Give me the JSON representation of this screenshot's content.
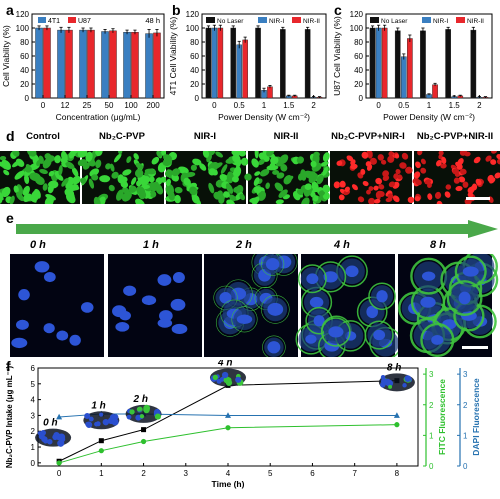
{
  "panels": {
    "a": {
      "letter": "a"
    },
    "b": {
      "letter": "b"
    },
    "c": {
      "letter": "c"
    },
    "d": {
      "letter": "d"
    },
    "e": {
      "letter": "e"
    },
    "f": {
      "letter": "f"
    }
  },
  "colors": {
    "series_4t1": "#3a7fc1",
    "series_u87": "#e8272c",
    "no_laser": "#111111",
    "nir1": "#3a7fc1",
    "nir2": "#e8272c",
    "live_green": "#3fd13f",
    "dead_red": "#e22424",
    "arrow_green": "#4aa84a",
    "dapi_blue": "#2672b0",
    "fitc_green": "#2ec02e"
  },
  "panel_d": {
    "labels": [
      "Control",
      "Nb₂C-PVP",
      "NIR-I",
      "NIR-II",
      "Nb₂C-PVP+NIR-I",
      "Nb₂C-PVP+NIR-II"
    ]
  },
  "panel_e": {
    "times": [
      "0 h",
      "1 h",
      "2 h",
      "4 h",
      "8 h"
    ]
  },
  "chart_data": [
    {
      "id": "a",
      "type": "bar",
      "annotation": "48 h",
      "xlabel": "Concentration (μg/mL)",
      "ylabel": "Cell Viability (%)",
      "categories": [
        "0",
        "12",
        "25",
        "50",
        "100",
        "200"
      ],
      "ylim": [
        0,
        120
      ],
      "yticks": [
        0,
        20,
        40,
        60,
        80,
        100,
        120
      ],
      "legend": "top-left",
      "series": [
        {
          "name": "4T1",
          "values": [
            100,
            97,
            97,
            95,
            94,
            92
          ],
          "errors": [
            3,
            4,
            3,
            3,
            3,
            6
          ]
        },
        {
          "name": "U87",
          "values": [
            100,
            97,
            97,
            96,
            94,
            93
          ],
          "errors": [
            3,
            4,
            3,
            3,
            3,
            5
          ]
        }
      ]
    },
    {
      "id": "b",
      "type": "bar",
      "xlabel": "Power Density (W cm⁻²)",
      "ylabel": "4T1 Cell Viability (%)",
      "categories": [
        "0",
        "0.5",
        "1",
        "1.5",
        "2"
      ],
      "ylim": [
        0,
        120
      ],
      "yticks": [
        0,
        20,
        40,
        60,
        80,
        100,
        120
      ],
      "legend": "top",
      "series": [
        {
          "name": "No Laser",
          "values": [
            100,
            100,
            100,
            98,
            98
          ],
          "errors": [
            3,
            3,
            3,
            3,
            3
          ]
        },
        {
          "name": "NIR-I",
          "values": [
            100,
            76,
            11,
            3,
            1
          ],
          "errors": [
            4,
            5,
            3,
            1,
            1
          ]
        },
        {
          "name": "NIR-II",
          "values": [
            100,
            83,
            16,
            3,
            1
          ],
          "errors": [
            4,
            4,
            2,
            1,
            1
          ]
        }
      ]
    },
    {
      "id": "c",
      "type": "bar",
      "xlabel": "Power Density (W cm⁻²)",
      "ylabel": "U87 Cell Viability (%)",
      "categories": [
        "0",
        "0.5",
        "1",
        "1.5",
        "2"
      ],
      "ylim": [
        0,
        120
      ],
      "yticks": [
        0,
        20,
        40,
        60,
        80,
        100,
        120
      ],
      "legend": "top",
      "series": [
        {
          "name": "No Laser",
          "values": [
            100,
            96,
            96,
            98,
            97
          ],
          "errors": [
            3,
            4,
            4,
            3,
            4
          ]
        },
        {
          "name": "NIR-I",
          "values": [
            100,
            59,
            5,
            2,
            1
          ],
          "errors": [
            4,
            4,
            1,
            1,
            1
          ]
        },
        {
          "name": "NIR-II",
          "values": [
            100,
            85,
            19,
            3,
            1
          ],
          "errors": [
            4,
            5,
            2,
            1,
            1
          ]
        }
      ]
    },
    {
      "id": "f",
      "type": "line",
      "xlabel": "Time (h)",
      "ylabel": "Nb₂C-PVP Intake (μg mL⁻¹)",
      "ylabel_right1": "FITC Fluorescence",
      "ylabel_right2": "DAPI Fluorescence",
      "xlim": [
        -0.5,
        8.5
      ],
      "xticks": [
        0,
        1,
        2,
        3,
        4,
        5,
        6,
        7,
        8
      ],
      "ylim": [
        -0.2,
        6
      ],
      "yticks": [
        0,
        1,
        2,
        3,
        4,
        5,
        6
      ],
      "fitc_ticks": [
        0,
        1,
        2,
        3
      ],
      "dapi_ticks": [
        0,
        1,
        2,
        3
      ],
      "time_labels": [
        "0 h",
        "1 h",
        "2 h",
        "4 h",
        "8 h"
      ],
      "series": [
        {
          "name": "Intake",
          "axis": "left",
          "x": [
            0,
            1,
            2,
            4,
            8
          ],
          "values": [
            0.1,
            1.4,
            2.1,
            4.9,
            5.2
          ]
        },
        {
          "name": "FITC",
          "axis": "fitc",
          "x": [
            0,
            1,
            2,
            4,
            8
          ],
          "values": [
            0.1,
            0.5,
            0.8,
            1.25,
            1.35
          ]
        },
        {
          "name": "DAPI",
          "axis": "dapi",
          "x": [
            0,
            1,
            2,
            4,
            8
          ],
          "values": [
            1.6,
            1.7,
            1.7,
            1.65,
            1.65
          ]
        }
      ]
    }
  ]
}
